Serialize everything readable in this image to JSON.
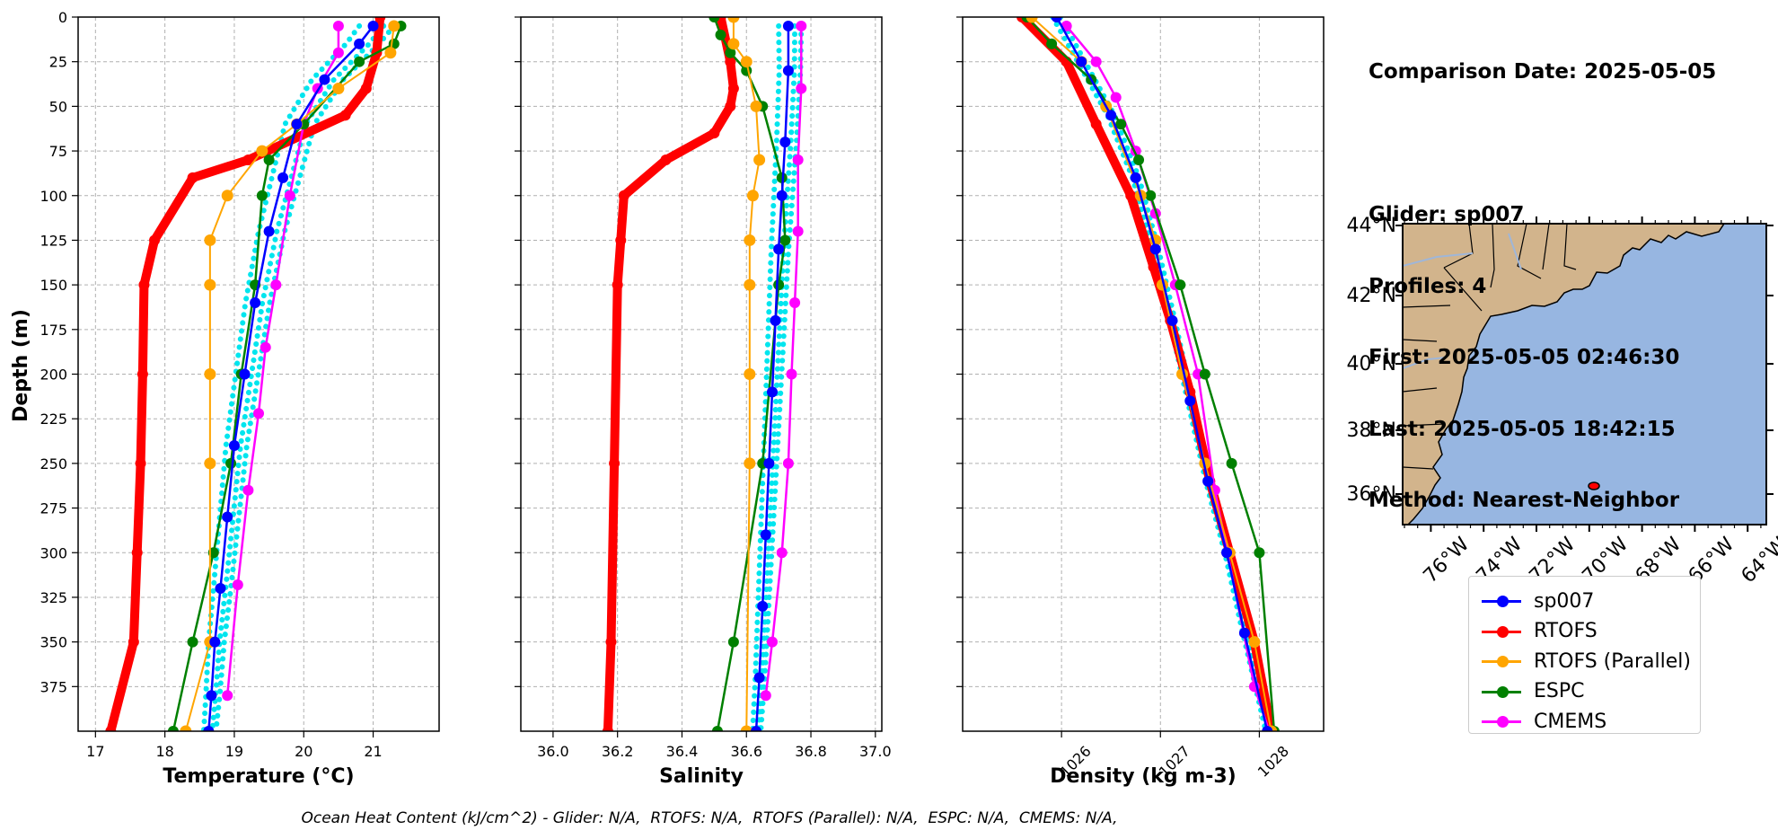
{
  "chart_data": [
    {
      "type": "line",
      "xlabel": "Temperature (°C)",
      "ylabel": "Depth (m)",
      "xlim": [
        16.75,
        21.95
      ],
      "ylim": [
        400,
        0
      ],
      "xticks": [
        "17",
        "18",
        "19",
        "20",
        "21"
      ],
      "yticks": [
        "0",
        "25",
        "50",
        "75",
        "100",
        "125",
        "150",
        "175",
        "200",
        "225",
        "250",
        "275",
        "300",
        "325",
        "350",
        "375"
      ],
      "grid": true,
      "series": [
        {
          "name": "sp007",
          "color": "#0000ff",
          "x": [
            21.0,
            20.8,
            20.3,
            19.9,
            19.7,
            19.5,
            19.3,
            19.15,
            19.0,
            18.9,
            18.8,
            18.72,
            18.67,
            18.63
          ],
          "y": [
            5,
            15,
            35,
            60,
            90,
            120,
            160,
            200,
            240,
            280,
            320,
            350,
            380,
            400
          ]
        },
        {
          "name": "RTOFS",
          "color": "#ff0000",
          "x": [
            21.1,
            21.05,
            20.9,
            20.6,
            19.2,
            18.4,
            17.85,
            17.7,
            17.68,
            17.65,
            17.6,
            17.55,
            17.22
          ],
          "y": [
            0,
            20,
            40,
            55,
            80,
            90,
            125,
            150,
            200,
            250,
            300,
            350,
            400
          ]
        },
        {
          "name": "RTOFS (Parallel)",
          "color": "#ffa500",
          "x": [
            21.3,
            21.25,
            20.5,
            19.9,
            19.4,
            18.9,
            18.65,
            18.65,
            18.65,
            18.65,
            18.65,
            18.3
          ],
          "y": [
            5,
            20,
            40,
            60,
            75,
            100,
            125,
            150,
            200,
            250,
            350,
            400
          ]
        },
        {
          "name": "ESPC",
          "color": "#008000",
          "x": [
            21.4,
            21.3,
            20.8,
            20.0,
            19.5,
            19.4,
            19.3,
            19.1,
            18.95,
            18.7,
            18.4,
            18.12
          ],
          "y": [
            5,
            15,
            25,
            60,
            80,
            100,
            150,
            200,
            250,
            300,
            350,
            400
          ]
        },
        {
          "name": "CMEMS",
          "color": "#ff00ff",
          "x": [
            20.5,
            20.5,
            20.2,
            20.0,
            19.8,
            19.6,
            19.45,
            19.35,
            19.2,
            19.05,
            18.9
          ],
          "y": [
            5,
            20,
            40,
            60,
            100,
            150,
            185,
            222,
            265,
            318,
            380
          ]
        }
      ]
    },
    {
      "type": "line",
      "xlabel": "Salinity",
      "xlim": [
        35.9,
        37.02
      ],
      "ylim": [
        400,
        0
      ],
      "xticks": [
        "36.0",
        "36.2",
        "36.4",
        "36.6",
        "36.8",
        "37.0"
      ],
      "grid": true,
      "series": [
        {
          "name": "sp007",
          "x": [
            36.73,
            36.73,
            36.72,
            36.71,
            36.7,
            36.69,
            36.68,
            36.67,
            36.66,
            36.65,
            36.64,
            36.63
          ],
          "y": [
            5,
            30,
            70,
            100,
            130,
            170,
            210,
            250,
            290,
            330,
            370,
            400
          ]
        },
        {
          "name": "RTOFS",
          "x": [
            36.52,
            36.55,
            36.56,
            36.55,
            36.5,
            36.35,
            36.22,
            36.21,
            36.2,
            36.19,
            36.18,
            36.17
          ],
          "y": [
            0,
            25,
            40,
            50,
            65,
            80,
            100,
            125,
            150,
            250,
            350,
            400
          ]
        },
        {
          "name": "RTOFS (Parallel)",
          "x": [
            36.56,
            36.56,
            36.6,
            36.63,
            36.64,
            36.62,
            36.61,
            36.61,
            36.61,
            36.61,
            36.6
          ],
          "y": [
            0,
            15,
            25,
            50,
            80,
            100,
            125,
            150,
            200,
            250,
            400
          ]
        },
        {
          "name": "ESPC",
          "x": [
            36.5,
            36.52,
            36.55,
            36.6,
            36.65,
            36.71,
            36.72,
            36.7,
            36.65,
            36.56,
            36.51
          ],
          "y": [
            0,
            10,
            20,
            30,
            50,
            90,
            125,
            150,
            250,
            350,
            400
          ]
        },
        {
          "name": "CMEMS",
          "x": [
            36.77,
            36.77,
            36.76,
            36.76,
            36.75,
            36.74,
            36.73,
            36.71,
            36.68,
            36.66
          ],
          "y": [
            5,
            40,
            80,
            120,
            160,
            200,
            250,
            300,
            350,
            380
          ]
        }
      ]
    },
    {
      "type": "line",
      "xlabel": "Density (kg m-3)",
      "xlim": [
        1025.0,
        1028.65
      ],
      "ylim": [
        400,
        0
      ],
      "xticks": [
        "1026",
        "1027",
        "1028"
      ],
      "grid": true,
      "series": [
        {
          "name": "sp007",
          "x": [
            1025.95,
            1026.2,
            1026.5,
            1026.75,
            1026.95,
            1027.12,
            1027.3,
            1027.48,
            1027.67,
            1027.85,
            1028.08
          ],
          "y": [
            0,
            25,
            55,
            90,
            130,
            170,
            215,
            260,
            300,
            345,
            400
          ]
        },
        {
          "name": "RTOFS",
          "x": [
            1025.6,
            1026.05,
            1026.35,
            1026.7,
            1026.93,
            1027.1,
            1027.3,
            1027.5,
            1027.7,
            1027.95,
            1028.12
          ],
          "y": [
            0,
            25,
            60,
            100,
            140,
            170,
            210,
            260,
            300,
            350,
            400
          ]
        },
        {
          "name": "RTOFS (Parallel)",
          "x": [
            1025.7,
            1026.2,
            1026.45,
            1026.8,
            1026.95,
            1027.02,
            1027.22,
            1027.45,
            1027.7,
            1027.95,
            1028.12
          ],
          "y": [
            0,
            25,
            50,
            100,
            125,
            150,
            200,
            250,
            300,
            350,
            400
          ]
        },
        {
          "name": "ESPC",
          "x": [
            1025.65,
            1025.9,
            1026.3,
            1026.6,
            1026.78,
            1026.9,
            1027.2,
            1027.45,
            1027.72,
            1028.0,
            1028.15
          ],
          "y": [
            0,
            15,
            35,
            60,
            80,
            100,
            150,
            200,
            250,
            300,
            400
          ]
        },
        {
          "name": "CMEMS",
          "x": [
            1026.05,
            1026.35,
            1026.55,
            1026.75,
            1026.95,
            1027.15,
            1027.38,
            1027.55,
            1027.95,
            1028.1
          ],
          "y": [
            5,
            25,
            45,
            75,
            110,
            150,
            200,
            265,
            375,
            400
          ]
        }
      ]
    }
  ],
  "info": {
    "comparison_date": "Comparison Date: 2025-05-05",
    "glider": "Glider: sp007",
    "profiles": "Profiles: 4",
    "first": "First: 2025-05-05 02:46:30",
    "last": "Last: 2025-05-05 18:42:15",
    "method": "Method: Nearest-Neighbor"
  },
  "map": {
    "lat_labels": [
      "44°N",
      "42°N",
      "40°N",
      "38°N",
      "36°N"
    ],
    "lon_labels": [
      "76°W",
      "74°W",
      "72°W",
      "70°W",
      "68°W",
      "66°W",
      "64°W"
    ],
    "land_color": "#d2b48c",
    "ocean_color": "#97b6e1",
    "glider_marker": {
      "lon": -69.8,
      "lat": 36.2
    }
  },
  "legend": [
    {
      "label": "sp007",
      "color": "#0000ff"
    },
    {
      "label": "RTOFS",
      "color": "#ff0000"
    },
    {
      "label": "RTOFS (Parallel)",
      "color": "#ffa500"
    },
    {
      "label": "ESPC",
      "color": "#008000"
    },
    {
      "label": "CMEMS",
      "color": "#ff00ff"
    }
  ],
  "footer": "Ocean Heat Content (kJ/cm^2) - Glider: N/A,  RTOFS: N/A,  RTOFS (Parallel): N/A,  ESPC: N/A,  CMEMS: N/A,"
}
